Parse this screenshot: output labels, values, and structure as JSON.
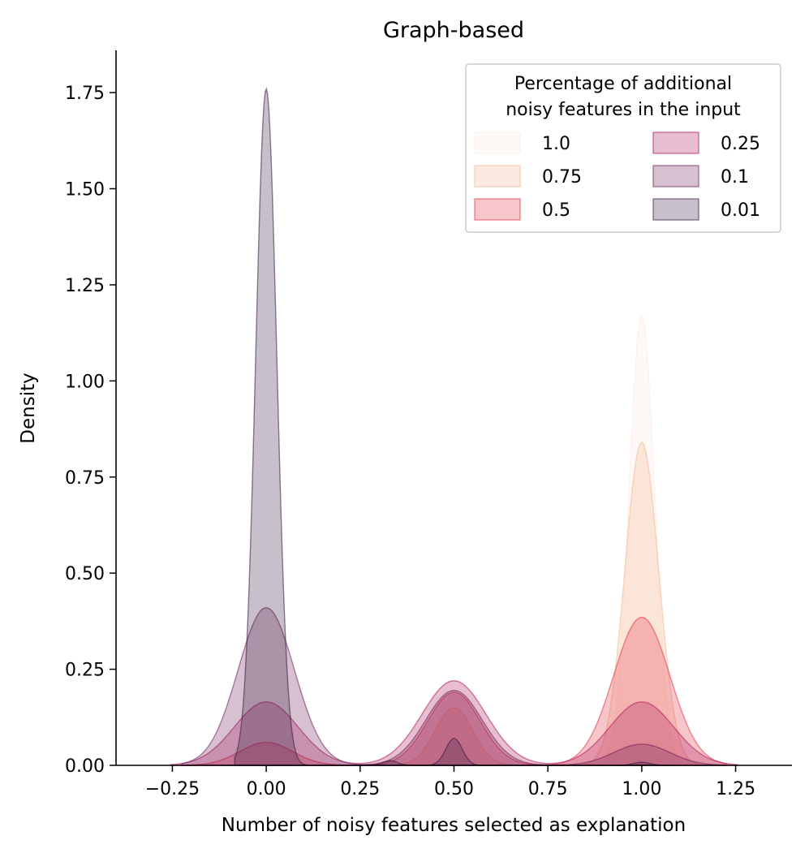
{
  "chart_data": {
    "type": "kde",
    "title": "Graph-based",
    "xlabel": "Number of noisy features selected as explanation",
    "ylabel": "Density",
    "xlim": [
      -0.4,
      1.4
    ],
    "ylim": [
      0,
      1.86
    ],
    "xticks": [
      -0.25,
      0.0,
      0.25,
      0.5,
      0.75,
      1.0,
      1.25
    ],
    "xtick_labels": [
      "−0.25",
      "0.00",
      "0.25",
      "0.50",
      "0.75",
      "1.00",
      "1.25"
    ],
    "yticks": [
      0.0,
      0.25,
      0.5,
      0.75,
      1.0,
      1.25,
      1.5,
      1.75
    ],
    "ytick_labels": [
      "0.00",
      "0.25",
      "0.50",
      "0.75",
      "1.00",
      "1.25",
      "1.50",
      "1.75"
    ],
    "legend": {
      "title_lines": [
        "Percentage of additional",
        "noisy features in the input"
      ],
      "placement": "top-right",
      "columns": 2
    },
    "series": [
      {
        "name": "1.0",
        "color": "#faebdd",
        "components": [
          {
            "mu": 1.0,
            "sigma": 0.034,
            "amp": 1.17
          }
        ]
      },
      {
        "name": "0.75",
        "color": "#f6b48f",
        "components": [
          {
            "mu": 1.0,
            "sigma": 0.045,
            "amp": 0.84
          },
          {
            "mu": 0.5,
            "sigma": 0.05,
            "amp": 0.15
          }
        ]
      },
      {
        "name": "0.5",
        "color": "#e13342",
        "components": [
          {
            "mu": 1.0,
            "sigma": 0.075,
            "amp": 0.385
          },
          {
            "mu": 0.5,
            "sigma": 0.07,
            "amp": 0.19
          },
          {
            "mu": 0.0,
            "sigma": 0.07,
            "amp": 0.06
          }
        ]
      },
      {
        "name": "0.25",
        "color": "#ae1759",
        "components": [
          {
            "mu": 1.0,
            "sigma": 0.085,
            "amp": 0.165
          },
          {
            "mu": 0.5,
            "sigma": 0.085,
            "amp": 0.22
          },
          {
            "mu": 0.0,
            "sigma": 0.085,
            "amp": 0.165
          }
        ]
      },
      {
        "name": "0.1",
        "color": "#701f57",
        "components": [
          {
            "mu": 0.0,
            "sigma": 0.075,
            "amp": 0.41
          },
          {
            "mu": 0.5,
            "sigma": 0.075,
            "amp": 0.195
          },
          {
            "mu": 1.0,
            "sigma": 0.075,
            "amp": 0.055
          }
        ]
      },
      {
        "name": "0.01",
        "color": "#35193e",
        "components": [
          {
            "mu": 0.0,
            "sigma": 0.028,
            "amp": 1.76
          },
          {
            "mu": 0.5,
            "sigma": 0.022,
            "amp": 0.07
          },
          {
            "mu": 0.33,
            "sigma": 0.02,
            "amp": 0.012
          },
          {
            "mu": 1.0,
            "sigma": 0.022,
            "amp": 0.008
          }
        ]
      }
    ]
  }
}
